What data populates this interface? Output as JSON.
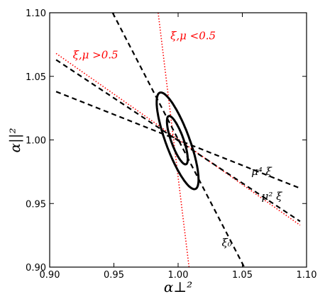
{
  "chart_data": {
    "type": "line",
    "xlabel": "α⊥²",
    "ylabel": "α||²",
    "xlim": [
      0.9,
      1.1
    ],
    "ylim": [
      0.9,
      1.1
    ],
    "x_ticks": [
      "0.90",
      "0.95",
      "1.00",
      "1.05",
      "1.10"
    ],
    "y_ticks": [
      "0.90",
      "0.95",
      "1.00",
      "1.05",
      "1.10"
    ],
    "grid": false,
    "series": [
      {
        "name": "ξ,μ >0.5",
        "style": "dotted",
        "color": "#ff0000",
        "x": [
          0.905,
          1.095
        ],
        "y": [
          1.068,
          0.933
        ]
      },
      {
        "name": "ξ,μ <0.5",
        "style": "dotted",
        "color": "#ff0000",
        "x": [
          0.9845,
          1.0085
        ],
        "y": [
          1.1,
          0.9
        ]
      },
      {
        "name": "μ² ξ",
        "style": "dashed",
        "color": "#000000",
        "x": [
          0.905,
          1.095
        ],
        "y": [
          1.063,
          0.936
        ]
      },
      {
        "name": "μ⁴ ξ",
        "style": "dashed",
        "color": "#000000",
        "x": [
          0.905,
          1.095
        ],
        "y": [
          1.038,
          0.962
        ]
      },
      {
        "name": "ξ₀",
        "style": "dashed",
        "color": "#000000",
        "x": [
          0.949,
          1.0515
        ],
        "y": [
          1.1,
          0.9
        ]
      }
    ],
    "ellipses": [
      {
        "level": "inner",
        "center": [
          0.9994,
          0.9998
        ],
        "sx": 0.0081,
        "sy": 0.019,
        "rho": -0.78
      },
      {
        "level": "outer",
        "center": [
          0.9996,
          0.9993
        ],
        "sx": 0.0163,
        "sy": 0.038,
        "rho": -0.8
      }
    ],
    "annotations": [
      {
        "text": "ξ,μ >0.5",
        "x": 0.918,
        "y": 1.064,
        "color": "#ff0000"
      },
      {
        "text": "ξ,μ <0.5",
        "x": 0.994,
        "y": 1.079,
        "color": "#ff0000"
      },
      {
        "text": "μ⁴ ξ",
        "x": 1.057,
        "y": 0.9725,
        "color": "#000000"
      },
      {
        "text": "μ² ξ",
        "x": 1.065,
        "y": 0.953,
        "color": "#000000"
      },
      {
        "text": "ξ₀",
        "x": 1.034,
        "y": 0.9165,
        "color": "#000000"
      }
    ]
  }
}
